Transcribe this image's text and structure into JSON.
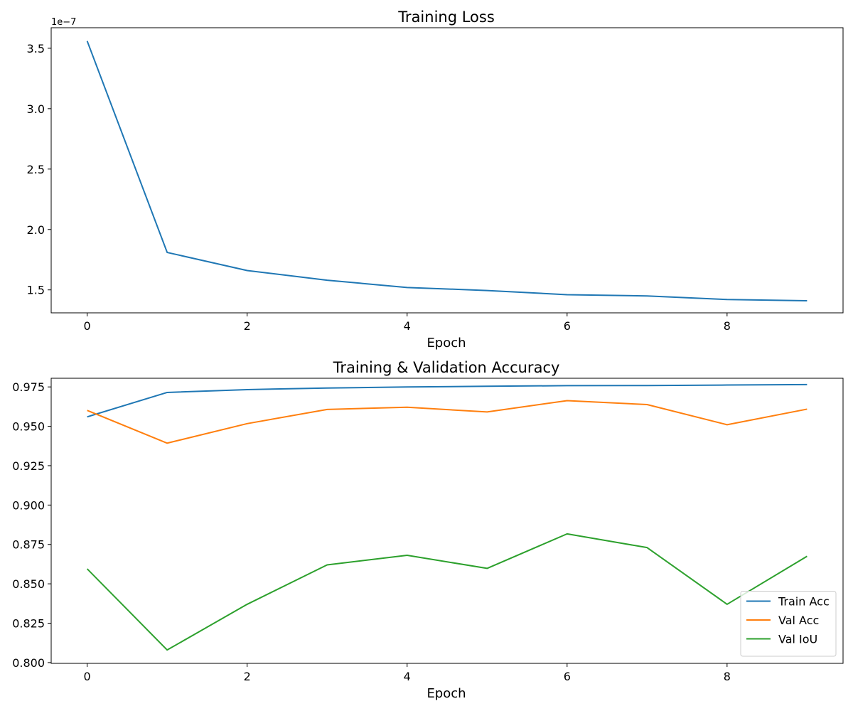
{
  "chart_data": [
    {
      "type": "line",
      "title": "Training Loss",
      "xlabel": "Epoch",
      "ylabel": "",
      "x": [
        0,
        1,
        2,
        3,
        4,
        5,
        6,
        7,
        8,
        9
      ],
      "series": [
        {
          "values": [
            3.56e-07,
            1.81e-07,
            1.66e-07,
            1.58e-07,
            1.52e-07,
            1.495e-07,
            1.46e-07,
            1.45e-07,
            1.42e-07,
            1.41e-07
          ]
        }
      ],
      "xlim": [
        -0.45,
        9.45
      ],
      "ylim": [
        1.31e-07,
        3.67e-07
      ],
      "y_offset_label": "1e−7",
      "xticks": [
        0,
        2,
        4,
        6,
        8
      ],
      "xtick_labels": [
        "0",
        "2",
        "4",
        "6",
        "8"
      ],
      "yticks": [
        1.5e-07,
        2e-07,
        2.5e-07,
        3e-07,
        3.5e-07
      ],
      "ytick_labels": [
        "1.5",
        "2.0",
        "2.5",
        "3.0",
        "3.5"
      ],
      "colors": [
        "#1f77b4"
      ],
      "grid": false,
      "legend": null
    },
    {
      "type": "line",
      "title": "Training & Validation Accuracy",
      "xlabel": "Epoch",
      "ylabel": "",
      "x": [
        0,
        1,
        2,
        3,
        4,
        5,
        6,
        7,
        8,
        9
      ],
      "series": [
        {
          "name": "Train Acc",
          "values": [
            0.956,
            0.9715,
            0.9733,
            0.9743,
            0.975,
            0.9754,
            0.9758,
            0.9759,
            0.9762,
            0.9765
          ]
        },
        {
          "name": "Val Acc",
          "values": [
            0.9601,
            0.9393,
            0.9517,
            0.9607,
            0.9621,
            0.9591,
            0.9663,
            0.9638,
            0.951,
            0.9609
          ]
        },
        {
          "name": "Val IoU",
          "values": [
            0.8595,
            0.808,
            0.837,
            0.862,
            0.8681,
            0.8598,
            0.8817,
            0.873,
            0.837,
            0.8675
          ]
        }
      ],
      "xlim": [
        -0.45,
        9.45
      ],
      "ylim": [
        0.7995,
        0.9805
      ],
      "xticks": [
        0,
        2,
        4,
        6,
        8
      ],
      "xtick_labels": [
        "0",
        "2",
        "4",
        "6",
        "8"
      ],
      "yticks": [
        0.8,
        0.825,
        0.85,
        0.875,
        0.9,
        0.925,
        0.95,
        0.975
      ],
      "ytick_labels": [
        "0.800",
        "0.825",
        "0.850",
        "0.875",
        "0.900",
        "0.925",
        "0.950",
        "0.975"
      ],
      "colors": [
        "#1f77b4",
        "#ff7f0e",
        "#2ca02c"
      ],
      "grid": false,
      "legend": "lower-right"
    }
  ]
}
